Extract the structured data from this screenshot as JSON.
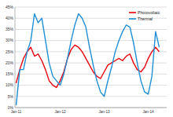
{
  "chart_data": {
    "type": "line",
    "categories": [
      "Jan-11",
      null,
      null,
      null,
      null,
      null,
      null,
      null,
      null,
      null,
      null,
      null,
      "Jan-12",
      null,
      null,
      null,
      null,
      null,
      null,
      null,
      null,
      null,
      null,
      null,
      "Jan-13",
      null,
      null,
      null,
      null,
      null,
      null,
      null,
      null,
      null,
      null,
      null,
      "Jan-14",
      null,
      null,
      null
    ],
    "series": [
      {
        "name": "Photovoltaic",
        "color": "#e8000b",
        "values": [
          11,
          17,
          22,
          25,
          27,
          23,
          24,
          21,
          17,
          12,
          10,
          9,
          12,
          16,
          22,
          26,
          28,
          27,
          25,
          22,
          19,
          16,
          14,
          13,
          16,
          19,
          20,
          21,
          22,
          21,
          23,
          24,
          20,
          17,
          16,
          18,
          22,
          25,
          27,
          25
        ]
      },
      {
        "name": "Thermal",
        "color": "#1f8fd6",
        "values": [
          1,
          17,
          17,
          25,
          30,
          42,
          38,
          40,
          30,
          20,
          14,
          12,
          10,
          15,
          22,
          30,
          37,
          42,
          40,
          36,
          27,
          19,
          12,
          7,
          5,
          12,
          18,
          25,
          30,
          34,
          37,
          36,
          29,
          20,
          12,
          7,
          6,
          14,
          34,
          27
        ]
      }
    ],
    "ylim": [
      0,
      45
    ],
    "yticks": [
      {
        "value": 0,
        "label": "0%"
      },
      {
        "value": 5,
        "label": "5%"
      },
      {
        "value": 10,
        "label": "10%"
      },
      {
        "value": 15,
        "label": "15%"
      },
      {
        "value": 20,
        "label": "20%"
      },
      {
        "value": 25,
        "label": "25%"
      },
      {
        "value": 30,
        "label": "30%"
      },
      {
        "value": 35,
        "label": "35%"
      },
      {
        "value": 40,
        "label": "40%"
      },
      {
        "value": 45,
        "label": "45%"
      }
    ],
    "grid": true,
    "legend": "top-right"
  }
}
